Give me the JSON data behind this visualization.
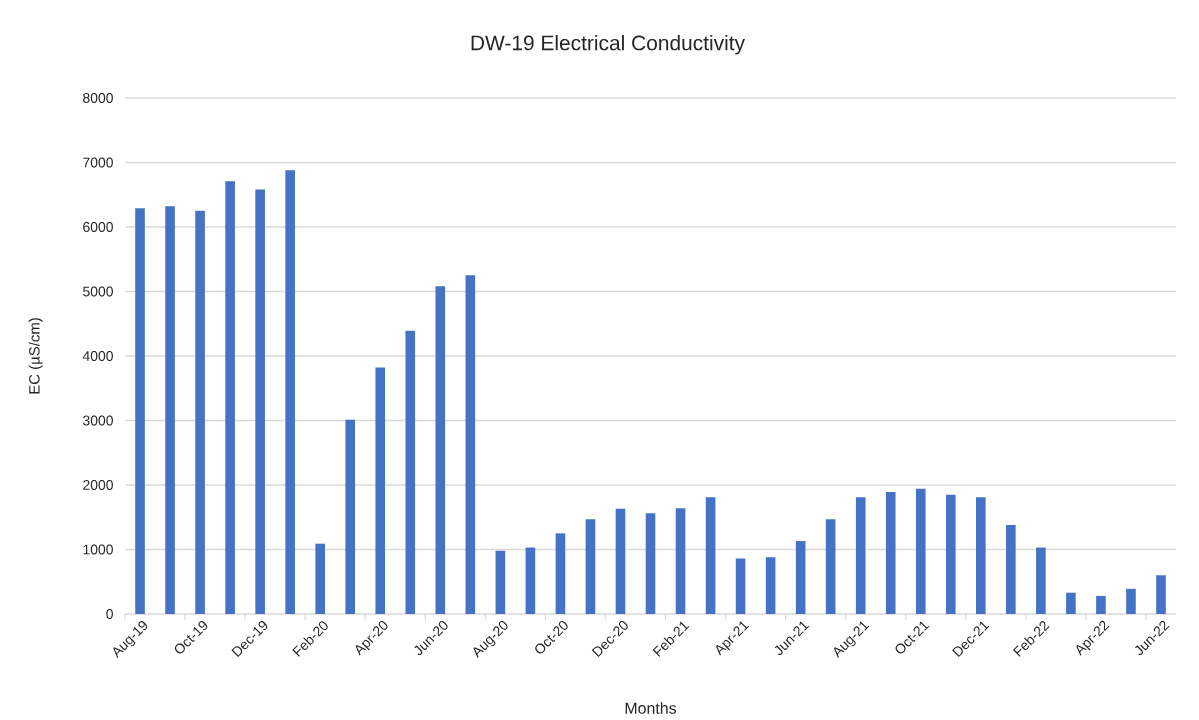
{
  "chart_data": {
    "type": "bar",
    "title": "DW-19 Electrical Conductivity",
    "xlabel": "Months",
    "ylabel": "EC (µS/cm)",
    "categories": [
      "Aug-19",
      null,
      "Oct-19",
      null,
      "Dec-19",
      null,
      "Feb-20",
      null,
      "Apr-20",
      null,
      "Jun-20",
      null,
      "Aug-20",
      null,
      "Oct-20",
      null,
      "Dec-20",
      null,
      "Feb-21",
      null,
      "Apr-21",
      null,
      "Jun-21",
      null,
      "Aug-21",
      null,
      "Oct-21",
      null,
      "Dec-21",
      null,
      "Feb-22",
      null,
      "Apr-22",
      null,
      "Jun-22"
    ],
    "values": [
      6290,
      6320,
      6250,
      6710,
      6580,
      6880,
      1090,
      3010,
      3820,
      4390,
      5080,
      5250,
      980,
      1030,
      1250,
      1470,
      1630,
      1560,
      1640,
      1810,
      860,
      880,
      1130,
      1470,
      1810,
      1890,
      1940,
      1850,
      1810,
      1380,
      1030,
      330,
      280,
      390,
      600
    ],
    "color": "#4472c4",
    "ylim": [
      0,
      8000
    ],
    "yticks": [
      0,
      1000,
      2000,
      3000,
      4000,
      5000,
      6000,
      7000,
      8000
    ],
    "grid": "y"
  }
}
